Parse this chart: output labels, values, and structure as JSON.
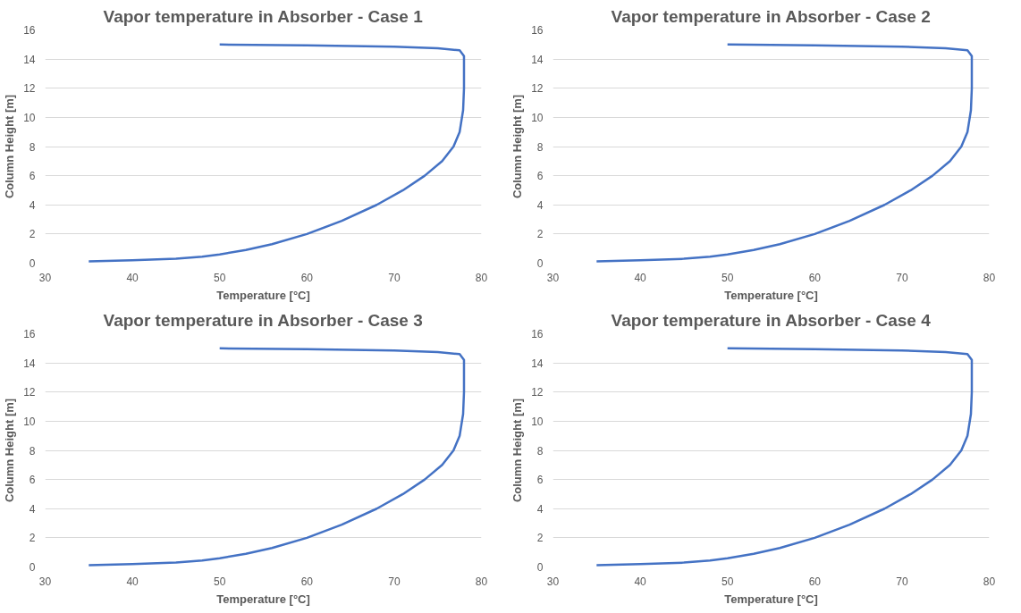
{
  "chart_data": [
    {
      "type": "line",
      "title": "Vapor temperature in Absorber - Case 1",
      "xlabel": "Temperature [°C]",
      "ylabel": "Column Height [m]",
      "xlim": [
        30,
        80
      ],
      "xticks": [
        30,
        40,
        50,
        60,
        70,
        80
      ],
      "ylim": [
        0,
        16
      ],
      "yticks": [
        0,
        2,
        4,
        6,
        8,
        10,
        12,
        14,
        16
      ],
      "grid": "y",
      "series": [
        {
          "color": "#4472c4",
          "x": [
            35,
            40,
            45,
            48,
            50,
            53,
            56,
            60,
            64,
            68,
            71,
            73.5,
            75.5,
            76.8,
            77.5,
            77.9,
            78,
            78,
            77.5,
            75,
            70,
            60,
            50
          ],
          "values": [
            0.12,
            0.2,
            0.3,
            0.45,
            0.6,
            0.9,
            1.3,
            2.0,
            2.9,
            4.0,
            5.0,
            6.0,
            7.0,
            8.0,
            9.0,
            10.5,
            12,
            14.2,
            14.6,
            14.75,
            14.85,
            14.95,
            15
          ]
        }
      ]
    },
    {
      "type": "line",
      "title": "Vapor temperature in Absorber - Case 2",
      "xlabel": "Temperature [°C]",
      "ylabel": "Column Height [m]",
      "xlim": [
        30,
        80
      ],
      "xticks": [
        30,
        40,
        50,
        60,
        70,
        80
      ],
      "ylim": [
        0,
        16
      ],
      "yticks": [
        0,
        2,
        4,
        6,
        8,
        10,
        12,
        14,
        16
      ],
      "grid": "y",
      "series": [
        {
          "color": "#4472c4",
          "x": [
            35,
            40,
            45,
            48,
            50,
            53,
            56,
            60,
            64,
            68,
            71,
            73.5,
            75.5,
            76.8,
            77.5,
            77.9,
            78,
            78,
            77.5,
            75,
            70,
            60,
            50
          ],
          "values": [
            0.12,
            0.2,
            0.3,
            0.45,
            0.6,
            0.9,
            1.3,
            2.0,
            2.9,
            4.0,
            5.0,
            6.0,
            7.0,
            8.0,
            9.0,
            10.5,
            12,
            14.2,
            14.6,
            14.75,
            14.85,
            14.95,
            15
          ]
        }
      ]
    },
    {
      "type": "line",
      "title": "Vapor temperature in Absorber - Case 3",
      "xlabel": "Temperature [°C]",
      "ylabel": "Column Height [m]",
      "xlim": [
        30,
        80
      ],
      "xticks": [
        30,
        40,
        50,
        60,
        70,
        80
      ],
      "ylim": [
        0,
        16
      ],
      "yticks": [
        0,
        2,
        4,
        6,
        8,
        10,
        12,
        14,
        16
      ],
      "grid": "y",
      "series": [
        {
          "color": "#4472c4",
          "x": [
            35,
            40,
            45,
            48,
            50,
            53,
            56,
            60,
            64,
            68,
            71,
            73.5,
            75.5,
            76.8,
            77.5,
            77.9,
            78,
            78,
            77.5,
            75,
            70,
            60,
            50
          ],
          "values": [
            0.12,
            0.2,
            0.3,
            0.45,
            0.6,
            0.9,
            1.3,
            2.0,
            2.9,
            4.0,
            5.0,
            6.0,
            7.0,
            8.0,
            9.0,
            10.5,
            12,
            14.2,
            14.6,
            14.75,
            14.85,
            14.95,
            15
          ]
        }
      ]
    },
    {
      "type": "line",
      "title": "Vapor temperature in Absorber - Case 4",
      "xlabel": "Temperature [°C]",
      "ylabel": "Column Height [m]",
      "xlim": [
        30,
        80
      ],
      "xticks": [
        30,
        40,
        50,
        60,
        70,
        80
      ],
      "ylim": [
        0,
        16
      ],
      "yticks": [
        0,
        2,
        4,
        6,
        8,
        10,
        12,
        14,
        16
      ],
      "grid": "y",
      "series": [
        {
          "color": "#4472c4",
          "x": [
            35,
            40,
            45,
            48,
            50,
            53,
            56,
            60,
            64,
            68,
            71,
            73.5,
            75.5,
            76.8,
            77.5,
            77.9,
            78,
            78,
            77.5,
            75,
            70,
            60,
            50
          ],
          "values": [
            0.12,
            0.2,
            0.3,
            0.45,
            0.6,
            0.9,
            1.3,
            2.0,
            2.9,
            4.0,
            5.0,
            6.0,
            7.0,
            8.0,
            9.0,
            10.5,
            12,
            14.2,
            14.6,
            14.75,
            14.85,
            14.95,
            15
          ]
        }
      ]
    }
  ]
}
